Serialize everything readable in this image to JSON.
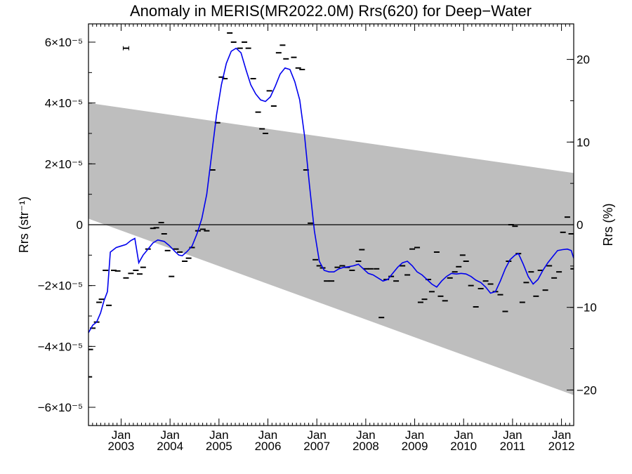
{
  "chart_data": {
    "type": "line",
    "title": "Anomaly in MERIS(MR2022.0M) Rrs(620) for Deep−Water",
    "ylabel_left": "Rrs (str⁻¹)",
    "ylabel_right": "Rrs (%)",
    "xlabel": "",
    "xlim": [
      2002.333,
      2012.25
    ],
    "ylim_left": [
      -6.6e-05,
      6.6e-05
    ],
    "ylim_right": [
      -24.3,
      24.3
    ],
    "grid": false,
    "legend": "none",
    "colors": {
      "running_mean": "#0000ee",
      "uncertainty_band": "#bebebe",
      "points": "#000000",
      "zero_line": "#000000"
    },
    "y_ticks_left": [
      {
        "value": 6e-05,
        "label": "6×10⁻⁵"
      },
      {
        "value": 4e-05,
        "label": "4×10⁻⁵"
      },
      {
        "value": 2e-05,
        "label": "2×10⁻⁵"
      },
      {
        "value": 0,
        "label": "0"
      },
      {
        "value": -2e-05,
        "label": "−2×10⁻⁵"
      },
      {
        "value": -4e-05,
        "label": "−4×10⁻⁵"
      },
      {
        "value": -6e-05,
        "label": "−6×10⁻⁵"
      }
    ],
    "y_ticks_right": [
      {
        "value": 20,
        "label": "20"
      },
      {
        "value": 10,
        "label": "10"
      },
      {
        "value": 0,
        "label": "0"
      },
      {
        "value": -10,
        "label": "−10"
      },
      {
        "value": -20,
        "label": "−20"
      }
    ],
    "x_ticks": [
      {
        "value": 2003.0,
        "month": "Jan",
        "year": "2003"
      },
      {
        "value": 2004.0,
        "month": "Jan",
        "year": "2004"
      },
      {
        "value": 2005.0,
        "month": "Jan",
        "year": "2005"
      },
      {
        "value": 2006.0,
        "month": "Jan",
        "year": "2006"
      },
      {
        "value": 2007.0,
        "month": "Jan",
        "year": "2007"
      },
      {
        "value": 2008.0,
        "month": "Jan",
        "year": "2008"
      },
      {
        "value": 2009.0,
        "month": "Jan",
        "year": "2009"
      },
      {
        "value": 2010.0,
        "month": "Jan",
        "year": "2010"
      },
      {
        "value": 2011.0,
        "month": "Jan",
        "year": "2011"
      },
      {
        "value": 2012.0,
        "month": "Jan",
        "year": "2012"
      }
    ],
    "band": {
      "upper": [
        [
          2002.333,
          4e-05
        ],
        [
          2012.25,
          1.7e-05
        ]
      ],
      "lower": [
        [
          2002.333,
          2e-06
        ],
        [
          2012.25,
          -5.6e-05
        ]
      ]
    },
    "monthly_points": [
      [
        2002.35,
        -5e-05
      ],
      [
        2002.37,
        -4.1e-05
      ],
      [
        2002.42,
        -3.4e-05
      ],
      [
        2002.5,
        -3.2e-05
      ],
      [
        2002.55,
        -2.55e-05
      ],
      [
        2002.6,
        -2.45e-05
      ],
      [
        2002.68,
        -1.5e-05
      ],
      [
        2002.75,
        -2.65e-05
      ],
      [
        2002.85,
        -1.5e-05
      ],
      [
        2002.93,
        -1.52e-05
      ],
      [
        2003.1,
        -1.75e-05
      ],
      [
        2003.2,
        -1.6e-05
      ],
      [
        2003.3,
        -1.5e-05
      ],
      [
        2003.38,
        -1.62e-05
      ],
      [
        2003.45,
        -1.4e-05
      ],
      [
        2003.55,
        -8e-06
      ],
      [
        2003.65,
        -1.2e-06
      ],
      [
        2003.72,
        -1e-06
      ],
      [
        2003.82,
        7e-07
      ],
      [
        2003.88,
        -3e-06
      ],
      [
        2003.95,
        -8.5e-06
      ],
      [
        2004.03,
        -1.7e-05
      ],
      [
        2004.12,
        -8e-06
      ],
      [
        2004.2,
        -9e-06
      ],
      [
        2004.3,
        -1.2e-05
      ],
      [
        2004.38,
        -1.1e-05
      ],
      [
        2004.45,
        -7.5e-06
      ],
      [
        2004.57,
        -2e-06
      ],
      [
        2004.67,
        -1.5e-06
      ],
      [
        2004.75,
        -2e-06
      ],
      [
        2004.87,
        1.8e-05
      ],
      [
        2004.97,
        3.35e-05
      ],
      [
        2005.05,
        4.85e-05
      ],
      [
        2005.12,
        4.8e-05
      ],
      [
        2005.22,
        6.3e-05
      ],
      [
        2005.3,
        6e-05
      ],
      [
        2005.43,
        5.8e-05
      ],
      [
        2005.52,
        6e-05
      ],
      [
        2005.6,
        5.8e-05
      ],
      [
        2005.7,
        4.8e-05
      ],
      [
        2005.8,
        3.7e-05
      ],
      [
        2005.88,
        3.15e-05
      ],
      [
        2005.95,
        3e-05
      ],
      [
        2006.03,
        4.4e-05
      ],
      [
        2006.12,
        3.9e-05
      ],
      [
        2006.22,
        5.65e-05
      ],
      [
        2006.3,
        5.9e-05
      ],
      [
        2006.37,
        5.45e-05
      ],
      [
        2006.53,
        5.5e-05
      ],
      [
        2006.62,
        5.15e-05
      ],
      [
        2006.7,
        5.1e-05
      ],
      [
        2006.78,
        1.8e-05
      ],
      [
        2006.87,
        5e-07
      ],
      [
        2006.97,
        -1.15e-05
      ],
      [
        2007.05,
        -1.35e-05
      ],
      [
        2007.12,
        -1.42e-05
      ],
      [
        2007.2,
        -1.85e-05
      ],
      [
        2007.3,
        -1.85e-05
      ],
      [
        2007.42,
        -1.4e-05
      ],
      [
        2007.52,
        -1.35e-05
      ],
      [
        2007.62,
        -1.4e-05
      ],
      [
        2007.72,
        -1.5e-05
      ],
      [
        2007.85,
        -1.2e-05
      ],
      [
        2007.92,
        -8.2e-06
      ],
      [
        2008.0,
        -1.45e-05
      ],
      [
        2008.1,
        -1.45e-05
      ],
      [
        2008.22,
        -1.45e-05
      ],
      [
        2008.32,
        -3.05e-05
      ],
      [
        2008.42,
        -1.8e-05
      ],
      [
        2008.52,
        -1.7e-05
      ],
      [
        2008.62,
        -1.85e-05
      ],
      [
        2008.75,
        -1.35e-05
      ],
      [
        2008.85,
        -1.65e-05
      ],
      [
        2008.95,
        -8e-06
      ],
      [
        2009.05,
        -7.5e-06
      ],
      [
        2009.12,
        -2.55e-05
      ],
      [
        2009.2,
        -2.45e-05
      ],
      [
        2009.28,
        -1.8e-05
      ],
      [
        2009.35,
        -2.2e-05
      ],
      [
        2009.45,
        -9e-06
      ],
      [
        2009.53,
        -2.35e-05
      ],
      [
        2009.62,
        -2.5e-05
      ],
      [
        2009.72,
        -1.75e-05
      ],
      [
        2009.82,
        -1.55e-05
      ],
      [
        2009.9,
        -1.38e-05
      ],
      [
        2009.98,
        -1e-05
      ],
      [
        2010.05,
        -1.2e-05
      ],
      [
        2010.15,
        -2e-05
      ],
      [
        2010.25,
        -2.7e-05
      ],
      [
        2010.35,
        -2.1e-05
      ],
      [
        2010.45,
        -1.85e-05
      ],
      [
        2010.55,
        -1.95e-05
      ],
      [
        2010.65,
        -2.2e-05
      ],
      [
        2010.75,
        -2.3e-05
      ],
      [
        2010.85,
        -2.85e-05
      ],
      [
        2010.92,
        -1.2e-05
      ],
      [
        2010.97,
        0.0
      ],
      [
        2011.05,
        -5e-07
      ],
      [
        2011.12,
        -9.5e-06
      ],
      [
        2011.2,
        -2.55e-05
      ],
      [
        2011.28,
        -1.9e-05
      ],
      [
        2011.38,
        -1.55e-05
      ],
      [
        2011.48,
        -2.35e-05
      ],
      [
        2011.57,
        -1.5e-05
      ],
      [
        2011.67,
        -2.15e-05
      ],
      [
        2011.75,
        -1.35e-05
      ],
      [
        2011.85,
        -1.75e-05
      ],
      [
        2011.95,
        -1.55e-05
      ],
      [
        2012.03,
        -2.5e-06
      ],
      [
        2012.12,
        2.5e-06
      ],
      [
        2012.2,
        -3e-06
      ],
      [
        2012.24,
        -1.45e-05
      ]
    ],
    "sample_with_error_bar": {
      "x": 2003.1,
      "y": 5.8e-05
    },
    "running_mean": [
      [
        2002.333,
        -3.55e-05
      ],
      [
        2002.42,
        -3.3e-05
      ],
      [
        2002.5,
        -3.2e-05
      ],
      [
        2002.58,
        -2.9e-05
      ],
      [
        2002.65,
        -2.5e-05
      ],
      [
        2002.72,
        -2.2e-05
      ],
      [
        2002.78,
        -9e-06
      ],
      [
        2002.9,
        -7.5e-06
      ],
      [
        2003.0,
        -7e-06
      ],
      [
        2003.1,
        -6.5e-06
      ],
      [
        2003.2,
        -5.2e-06
      ],
      [
        2003.28,
        -4.5e-06
      ],
      [
        2003.36,
        -1.25e-05
      ],
      [
        2003.45,
        -1e-05
      ],
      [
        2003.55,
        -8e-06
      ],
      [
        2003.65,
        -6e-06
      ],
      [
        2003.75,
        -5e-06
      ],
      [
        2003.88,
        -5.5e-06
      ],
      [
        2003.98,
        -6.8e-06
      ],
      [
        2004.1,
        -8.8e-06
      ],
      [
        2004.18,
        -1e-05
      ],
      [
        2004.25,
        -1.02e-05
      ],
      [
        2004.35,
        -8.8e-06
      ],
      [
        2004.45,
        -7e-06
      ],
      [
        2004.55,
        -3e-06
      ],
      [
        2004.65,
        2e-06
      ],
      [
        2004.75,
        1e-05
      ],
      [
        2004.85,
        2.3e-05
      ],
      [
        2004.95,
        3.6e-05
      ],
      [
        2005.05,
        4.6e-05
      ],
      [
        2005.15,
        5.3e-05
      ],
      [
        2005.25,
        5.7e-05
      ],
      [
        2005.35,
        5.8e-05
      ],
      [
        2005.45,
        5.65e-05
      ],
      [
        2005.55,
        5.1e-05
      ],
      [
        2005.65,
        4.6e-05
      ],
      [
        2005.75,
        4.3e-05
      ],
      [
        2005.85,
        4.1e-05
      ],
      [
        2005.95,
        4.05e-05
      ],
      [
        2006.05,
        4.2e-05
      ],
      [
        2006.15,
        4.55e-05
      ],
      [
        2006.25,
        4.95e-05
      ],
      [
        2006.35,
        5.15e-05
      ],
      [
        2006.45,
        5.1e-05
      ],
      [
        2006.55,
        4.7e-05
      ],
      [
        2006.65,
        4.1e-05
      ],
      [
        2006.75,
        2.9e-05
      ],
      [
        2006.85,
        1.3e-05
      ],
      [
        2006.95,
        -2e-06
      ],
      [
        2007.05,
        -1.2e-05
      ],
      [
        2007.15,
        -1.5e-05
      ],
      [
        2007.25,
        -1.55e-05
      ],
      [
        2007.35,
        -1.55e-05
      ],
      [
        2007.45,
        -1.45e-05
      ],
      [
        2007.55,
        -1.4e-05
      ],
      [
        2007.65,
        -1.38e-05
      ],
      [
        2007.75,
        -1.35e-05
      ],
      [
        2007.85,
        -1.3e-05
      ],
      [
        2007.95,
        -1.45e-05
      ],
      [
        2008.05,
        -1.6e-05
      ],
      [
        2008.15,
        -1.65e-05
      ],
      [
        2008.25,
        -1.75e-05
      ],
      [
        2008.35,
        -1.85e-05
      ],
      [
        2008.45,
        -1.8e-05
      ],
      [
        2008.55,
        -1.6e-05
      ],
      [
        2008.65,
        -1.4e-05
      ],
      [
        2008.75,
        -1.25e-05
      ],
      [
        2008.85,
        -1.2e-05
      ],
      [
        2008.95,
        -1.35e-05
      ],
      [
        2009.05,
        -1.55e-05
      ],
      [
        2009.15,
        -1.65e-05
      ],
      [
        2009.25,
        -1.8e-05
      ],
      [
        2009.35,
        -1.95e-05
      ],
      [
        2009.45,
        -2.05e-05
      ],
      [
        2009.55,
        -1.85e-05
      ],
      [
        2009.65,
        -1.7e-05
      ],
      [
        2009.75,
        -1.6e-05
      ],
      [
        2009.85,
        -1.62e-05
      ],
      [
        2009.95,
        -1.6e-05
      ],
      [
        2010.05,
        -1.62e-05
      ],
      [
        2010.15,
        -1.7e-05
      ],
      [
        2010.25,
        -1.82e-05
      ],
      [
        2010.35,
        -1.9e-05
      ],
      [
        2010.45,
        -2.05e-05
      ],
      [
        2010.55,
        -2.25e-05
      ],
      [
        2010.65,
        -2.2e-05
      ],
      [
        2010.75,
        -1.85e-05
      ],
      [
        2010.85,
        -1.45e-05
      ],
      [
        2010.95,
        -1.15e-05
      ],
      [
        2011.05,
        -1e-05
      ],
      [
        2011.12,
        -9.5e-06
      ],
      [
        2011.22,
        -1.3e-05
      ],
      [
        2011.32,
        -1.7e-05
      ],
      [
        2011.42,
        -1.95e-05
      ],
      [
        2011.52,
        -1.8e-05
      ],
      [
        2011.62,
        -1.5e-05
      ],
      [
        2011.72,
        -1.25e-05
      ],
      [
        2011.82,
        -1.05e-05
      ],
      [
        2011.92,
        -8.5e-06
      ],
      [
        2012.02,
        -8.2e-06
      ],
      [
        2012.12,
        -8e-06
      ],
      [
        2012.2,
        -8.5e-06
      ],
      [
        2012.25,
        -1.1e-05
      ]
    ]
  }
}
